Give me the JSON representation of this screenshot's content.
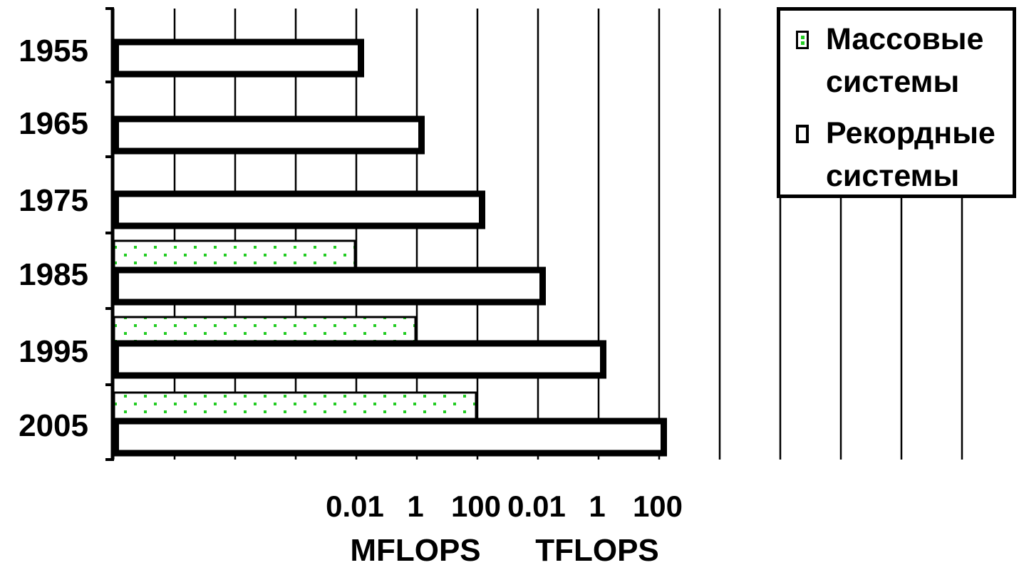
{
  "chart_data": {
    "type": "bar",
    "orientation": "horizontal",
    "categories": [
      "1955",
      "1965",
      "1975",
      "1985",
      "1995",
      "2005"
    ],
    "x_scale": "log",
    "x_ticks_mflops": [
      0.01,
      1,
      100,
      10000,
      1000000,
      100000000
    ],
    "tick_labels": [
      "0.01",
      "1",
      "100",
      "0.01",
      "1",
      "100"
    ],
    "axis_unit_labels": [
      "MFLOPS",
      "TFLOPS"
    ],
    "series": [
      {
        "name": "Массовые системы",
        "color": "#22cc22",
        "fill": "dotted",
        "values_mflops": [
          null,
          null,
          null,
          0.01,
          1,
          100
        ]
      },
      {
        "name": "Рекордные системы",
        "color": "#000000",
        "fill": "white",
        "values_mflops": [
          0.01,
          1,
          100,
          10000,
          1000000,
          100000000
        ]
      }
    ],
    "grid": "vertical",
    "legend_position": "top-right"
  },
  "legend": {
    "mass_line1": "Массовые",
    "mass_line2": "системы",
    "record_line1": "Рекордные",
    "record_line2": "системы"
  }
}
